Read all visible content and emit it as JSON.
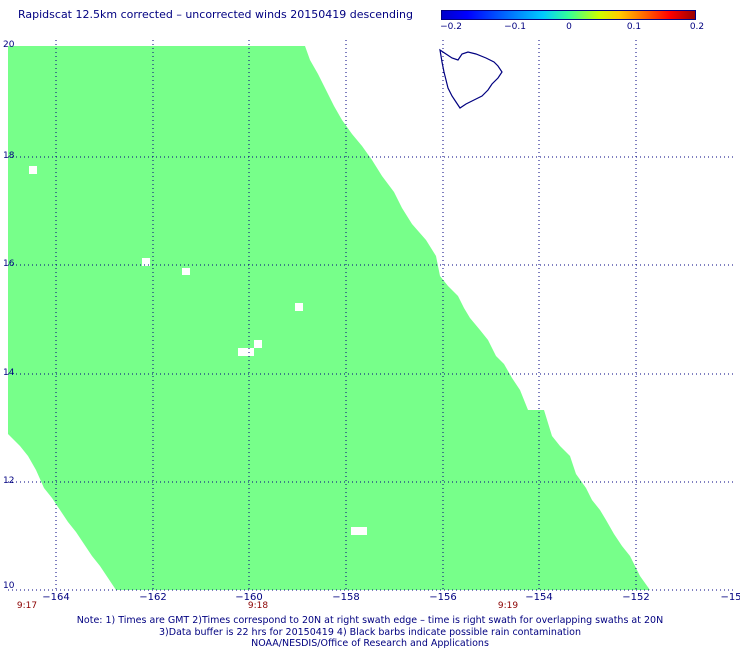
{
  "title": "Rapidscat 12.5km corrected – uncorrected winds 20150419 descending",
  "colorbar": {
    "ticks": [
      "−0.2",
      "−0.1",
      "0",
      "0.1",
      "0.2"
    ],
    "colors": [
      "#0000cc",
      "#00ccff",
      "#33ff99",
      "#ffcc00",
      "#990000"
    ]
  },
  "map": {
    "lat_labels": [
      "20",
      "18",
      "16",
      "14",
      "12",
      "10"
    ],
    "lon_labels": [
      "−164",
      "−162",
      "−160",
      "−158",
      "−156",
      "−154",
      "−152",
      "−15"
    ],
    "time_labels": [
      "9:17",
      "9:18",
      "9:19"
    ],
    "swath_color": "#77ff8a",
    "coast_color": "#000080",
    "grid_color": "#000080"
  },
  "notes": {
    "line1": "Note: 1) Times are GMT 2)Times correspond to 20N at right swath edge – time is right swath for overlapping swaths at 20N",
    "line2": "3)Data buffer is 22 hrs for 20150419 4) Black barbs indicate possible rain contamination",
    "line3": "NOAA/NESDIS/Office of Research and Applications"
  }
}
